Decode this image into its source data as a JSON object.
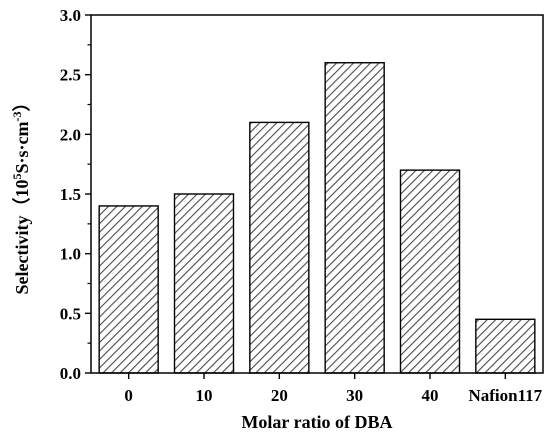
{
  "chart_data": {
    "type": "bar",
    "categories": [
      "0",
      "10",
      "20",
      "30",
      "40",
      "Nafion117"
    ],
    "values": [
      1.4,
      1.5,
      2.1,
      2.6,
      1.7,
      0.45
    ],
    "xlabel": "Molar ratio of DBA",
    "ylabel": {
      "text": "Selectivity（10",
      "sup1": "5",
      "mid": "S·s·cm",
      "sup2": "-3",
      "end": "）"
    },
    "ylim": [
      0,
      3.0
    ],
    "yticks": [
      "0.0",
      "0.5",
      "1.0",
      "1.5",
      "2.0",
      "2.5",
      "3.0"
    ],
    "grid": false,
    "legend": "none",
    "bar_fill": "hatched",
    "colors": {
      "axis": "#000000",
      "bar_edge": "#000000",
      "hatch": "#555555"
    }
  }
}
